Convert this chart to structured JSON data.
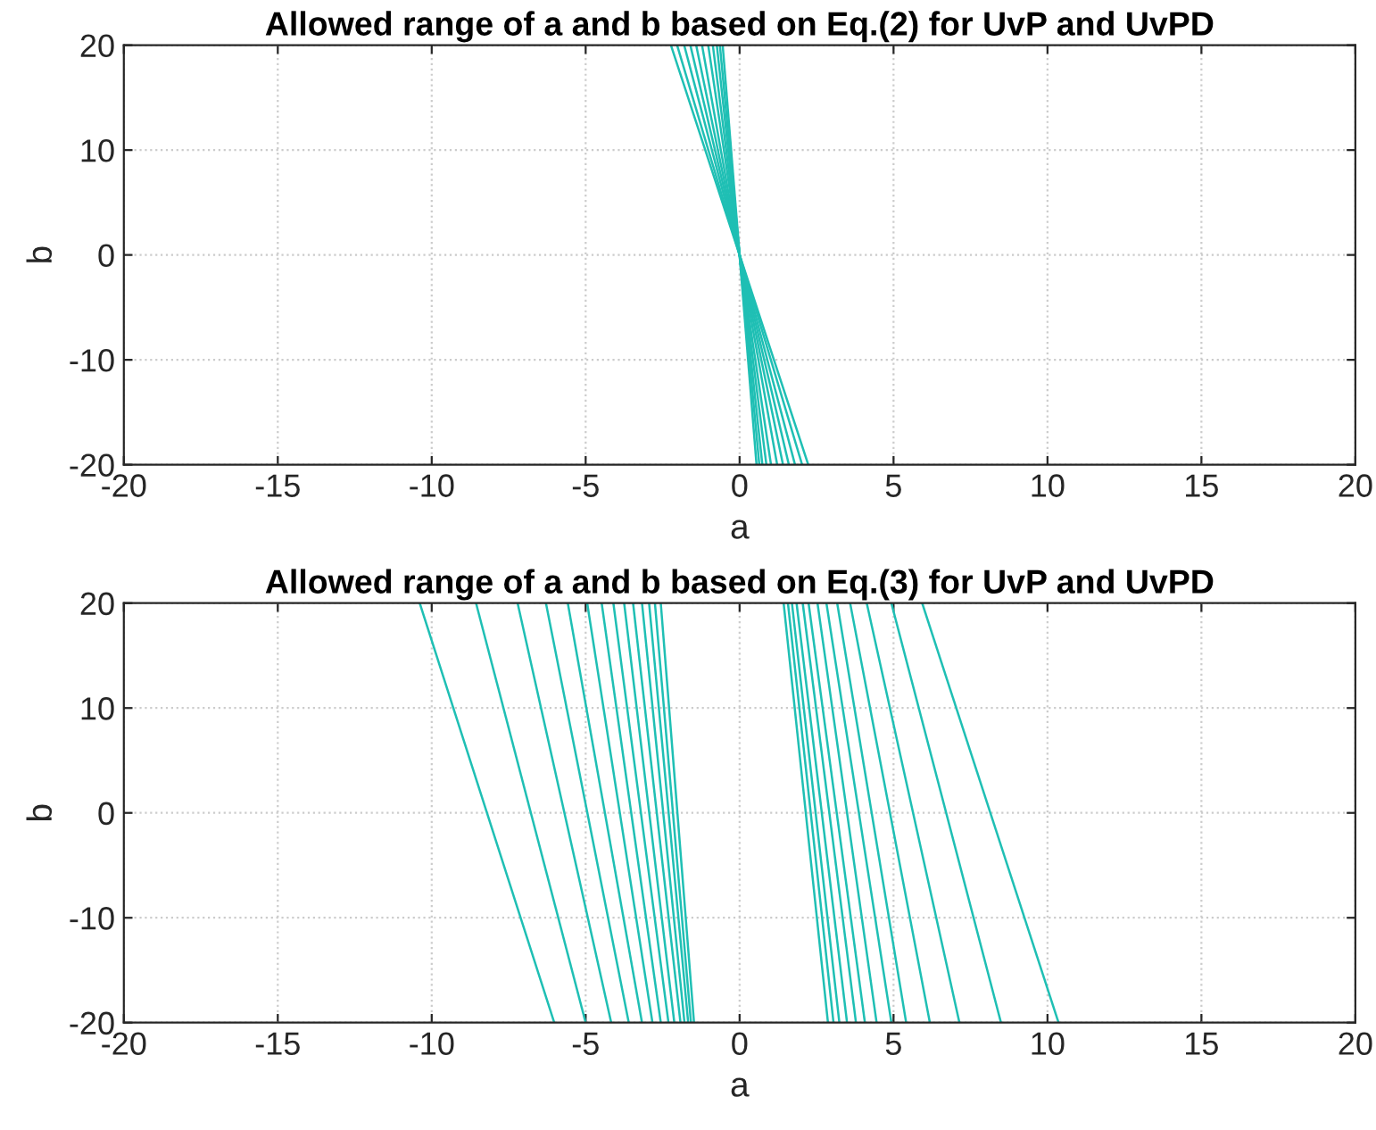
{
  "chart_data": [
    {
      "type": "line",
      "title": "Allowed range of a and b based on Eq.(2) for UvP and UvPD",
      "xlabel": "a",
      "ylabel": "b",
      "xlim": [
        -20,
        20
      ],
      "ylim": [
        -20,
        20
      ],
      "xticks": [
        -20,
        -15,
        -10,
        -5,
        0,
        5,
        10,
        15,
        20
      ],
      "yticks": [
        -20,
        -10,
        0,
        10,
        20
      ],
      "grid": true,
      "line_style": "solid",
      "marker": "none",
      "series": [
        {
          "color": "#1fbfb4",
          "x": [
            -2.23,
            2.23
          ],
          "values": [
            20,
            -20
          ]
        },
        {
          "color": "#1fbfb4",
          "x": [
            -2.03,
            2.03
          ],
          "values": [
            20,
            -20
          ]
        },
        {
          "color": "#1fbfb4",
          "x": [
            -1.8,
            1.8
          ],
          "values": [
            20,
            -20
          ]
        },
        {
          "color": "#1fbfb4",
          "x": [
            -1.6,
            1.6
          ],
          "values": [
            20,
            -20
          ]
        },
        {
          "color": "#1fbfb4",
          "x": [
            -1.41,
            1.41
          ],
          "values": [
            20,
            -20
          ]
        },
        {
          "color": "#1fbfb4",
          "x": [
            -1.22,
            1.22
          ],
          "values": [
            20,
            -20
          ]
        },
        {
          "color": "#1fbfb4",
          "x": [
            -1.02,
            1.02
          ],
          "values": [
            20,
            -20
          ]
        },
        {
          "color": "#1fbfb4",
          "x": [
            -0.87,
            0.87
          ],
          "values": [
            20,
            -20
          ]
        },
        {
          "color": "#1fbfb4",
          "x": [
            -0.74,
            0.74
          ],
          "values": [
            20,
            -20
          ]
        },
        {
          "color": "#1fbfb4",
          "x": [
            -0.64,
            0.64
          ],
          "values": [
            20,
            -20
          ]
        },
        {
          "color": "#1fbfb4",
          "x": [
            -0.55,
            0.55
          ],
          "values": [
            20,
            -20
          ]
        }
      ]
    },
    {
      "type": "line",
      "title": "Allowed range of a and b based on Eq.(3) for UvP and UvPD",
      "xlabel": "a",
      "ylabel": "b",
      "xlim": [
        -20,
        20
      ],
      "ylim": [
        -20,
        20
      ],
      "xticks": [
        -20,
        -15,
        -10,
        -5,
        0,
        5,
        10,
        15,
        20
      ],
      "yticks": [
        -20,
        -10,
        0,
        10,
        20
      ],
      "grid": true,
      "line_style": "solid",
      "marker": "none",
      "series": [
        {
          "color": "#1fbfb4",
          "x": [
            -10.39,
            -6.02
          ],
          "values": [
            20,
            -20
          ]
        },
        {
          "color": "#1fbfb4",
          "x": [
            -8.56,
            -5.0
          ],
          "values": [
            20,
            -20
          ]
        },
        {
          "color": "#1fbfb4",
          "x": [
            -7.21,
            -4.17
          ],
          "values": [
            20,
            -20
          ]
        },
        {
          "color": "#1fbfb4",
          "x": [
            -6.29,
            -3.6
          ],
          "values": [
            20,
            -20
          ]
        },
        {
          "color": "#1fbfb4",
          "x": [
            -5.58,
            -3.17
          ],
          "values": [
            20,
            -20
          ]
        },
        {
          "color": "#1fbfb4",
          "x": [
            -4.95,
            -2.83
          ],
          "values": [
            20,
            -20
          ]
        },
        {
          "color": "#1fbfb4",
          "x": [
            -4.48,
            -2.56
          ],
          "values": [
            20,
            -20
          ]
        },
        {
          "color": "#1fbfb4",
          "x": [
            -4.1,
            -2.31
          ],
          "values": [
            20,
            -20
          ]
        },
        {
          "color": "#1fbfb4",
          "x": [
            -3.75,
            -2.12
          ],
          "values": [
            20,
            -20
          ]
        },
        {
          "color": "#1fbfb4",
          "x": [
            -3.46,
            -1.92
          ],
          "values": [
            20,
            -20
          ]
        },
        {
          "color": "#1fbfb4",
          "x": [
            -3.17,
            -1.79
          ],
          "values": [
            20,
            -20
          ]
        },
        {
          "color": "#1fbfb4",
          "x": [
            -2.94,
            -1.67
          ],
          "values": [
            20,
            -20
          ]
        },
        {
          "color": "#1fbfb4",
          "x": [
            -2.75,
            -1.58
          ],
          "values": [
            20,
            -20
          ]
        },
        {
          "color": "#1fbfb4",
          "x": [
            -2.56,
            -1.48
          ],
          "values": [
            20,
            -20
          ]
        },
        {
          "color": "#1fbfb4",
          "x": [
            5.93,
            10.36
          ],
          "values": [
            20,
            -20
          ]
        },
        {
          "color": "#1fbfb4",
          "x": [
            4.93,
            8.49
          ],
          "values": [
            20,
            -20
          ]
        },
        {
          "color": "#1fbfb4",
          "x": [
            4.13,
            7.14
          ],
          "values": [
            20,
            -20
          ]
        },
        {
          "color": "#1fbfb4",
          "x": [
            3.59,
            6.18
          ],
          "values": [
            20,
            -20
          ]
        },
        {
          "color": "#1fbfb4",
          "x": [
            3.17,
            5.41
          ],
          "values": [
            20,
            -20
          ]
        },
        {
          "color": "#1fbfb4",
          "x": [
            2.82,
            4.93
          ],
          "values": [
            20,
            -20
          ]
        },
        {
          "color": "#1fbfb4",
          "x": [
            2.53,
            4.45
          ],
          "values": [
            20,
            -20
          ]
        },
        {
          "color": "#1fbfb4",
          "x": [
            2.24,
            4.07
          ],
          "values": [
            20,
            -20
          ]
        },
        {
          "color": "#1fbfb4",
          "x": [
            2.05,
            3.78
          ],
          "values": [
            20,
            -20
          ]
        },
        {
          "color": "#1fbfb4",
          "x": [
            1.85,
            3.49
          ],
          "values": [
            20,
            -20
          ]
        },
        {
          "color": "#1fbfb4",
          "x": [
            1.7,
            3.24
          ],
          "values": [
            20,
            -20
          ]
        },
        {
          "color": "#1fbfb4",
          "x": [
            1.57,
            3.05
          ],
          "values": [
            20,
            -20
          ]
        },
        {
          "color": "#1fbfb4",
          "x": [
            1.43,
            2.87
          ],
          "values": [
            20,
            -20
          ]
        }
      ]
    }
  ]
}
